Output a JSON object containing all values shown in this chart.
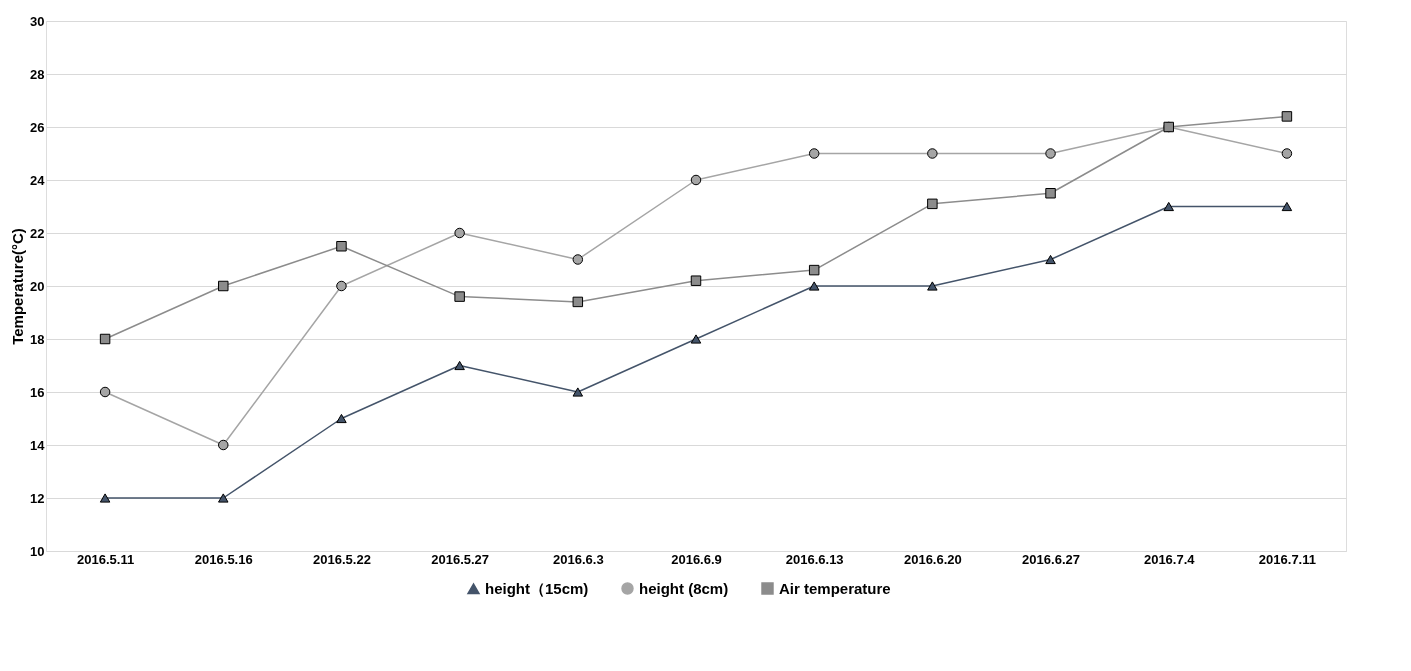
{
  "chart_data": {
    "type": "line",
    "ylabel": "Temperature(°C)",
    "categories": [
      "2016.5.11",
      "2016.5.16",
      "2016.5.22",
      "2016.5.27",
      "2016.6.3",
      "2016.6.9",
      "2016.6.13",
      "2016.6.20",
      "2016.6.27",
      "2016.7.4",
      "2016.7.11"
    ],
    "series": [
      {
        "name": "height（15cm)",
        "color": "#44546a",
        "marker": "triangle",
        "values": [
          12,
          12,
          15,
          17,
          16,
          18,
          20,
          20,
          21,
          23,
          23
        ]
      },
      {
        "name": "height (8cm)",
        "color": "#a5a5a5",
        "marker": "circle",
        "values": [
          16,
          14,
          20,
          22,
          21,
          24,
          25,
          25,
          25,
          26,
          25
        ]
      },
      {
        "name": "Air temperature",
        "color": "#8c8c8c",
        "marker": "square",
        "values": [
          18,
          20,
          21.5,
          19.6,
          19.4,
          20.2,
          20.6,
          23.1,
          23.5,
          26,
          26.4
        ]
      }
    ],
    "ylim": [
      10,
      30
    ],
    "yticks": [
      10,
      12,
      14,
      16,
      18,
      20,
      22,
      24,
      26,
      28,
      30
    ],
    "grid": "y",
    "legend": "bottom"
  }
}
